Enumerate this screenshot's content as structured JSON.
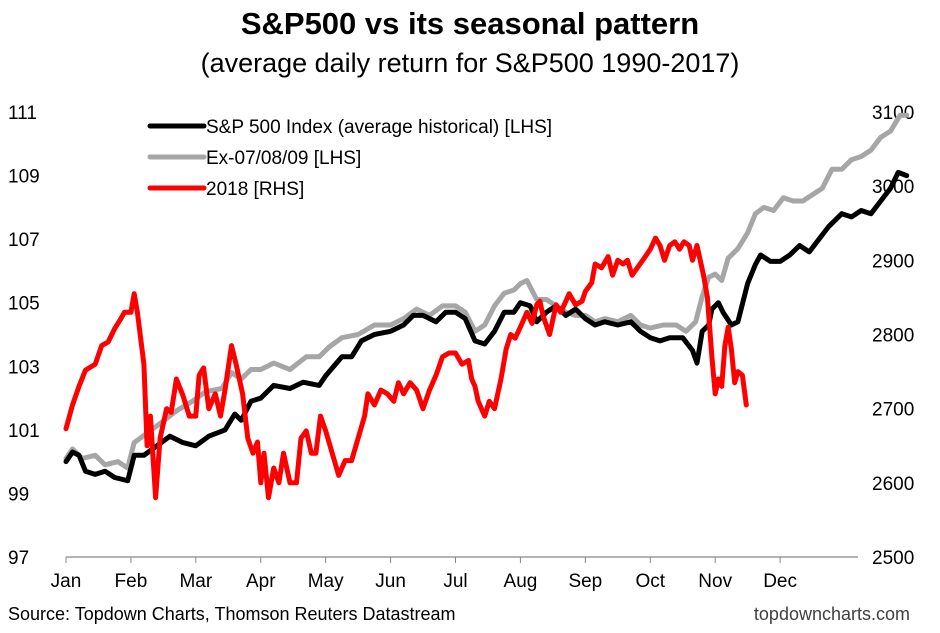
{
  "chart_data": {
    "type": "line",
    "title": "S&P500 vs its seasonal pattern",
    "subtitle": "(average daily return for S&P500 1990-2017)",
    "x_categories": [
      "Jan",
      "Feb",
      "Mar",
      "Apr",
      "May",
      "Jun",
      "Jul",
      "Aug",
      "Sep",
      "Oct",
      "Nov",
      "Dec"
    ],
    "x_range_months": [
      0,
      12
    ],
    "y_left": {
      "range": [
        97,
        111
      ],
      "ticks": [
        97,
        99,
        101,
        103,
        105,
        107,
        109,
        111
      ]
    },
    "y_right": {
      "range": [
        2500,
        3100
      ],
      "ticks": [
        2500,
        2600,
        2700,
        2800,
        2900,
        3000,
        3100
      ]
    },
    "legend_position": "top-left",
    "grid": false,
    "series": [
      {
        "name": "S&P 500 Index (average historical) [LHS]",
        "axis": "left",
        "color": "#000000",
        "points": [
          [
            0.0,
            100.0
          ],
          [
            0.1,
            100.3
          ],
          [
            0.2,
            100.2
          ],
          [
            0.3,
            99.7
          ],
          [
            0.45,
            99.6
          ],
          [
            0.6,
            99.7
          ],
          [
            0.75,
            99.5
          ],
          [
            0.95,
            99.4
          ],
          [
            1.05,
            100.2
          ],
          [
            1.2,
            100.2
          ],
          [
            1.4,
            100.5
          ],
          [
            1.6,
            100.8
          ],
          [
            1.8,
            100.6
          ],
          [
            2.0,
            100.5
          ],
          [
            2.2,
            100.8
          ],
          [
            2.45,
            101.0
          ],
          [
            2.6,
            101.5
          ],
          [
            2.7,
            101.3
          ],
          [
            2.85,
            101.9
          ],
          [
            3.0,
            102.0
          ],
          [
            3.2,
            102.4
          ],
          [
            3.45,
            102.3
          ],
          [
            3.65,
            102.5
          ],
          [
            3.9,
            102.4
          ],
          [
            4.0,
            102.7
          ],
          [
            4.25,
            103.3
          ],
          [
            4.4,
            103.3
          ],
          [
            4.55,
            103.8
          ],
          [
            4.75,
            104.0
          ],
          [
            5.0,
            104.1
          ],
          [
            5.2,
            104.3
          ],
          [
            5.35,
            104.6
          ],
          [
            5.5,
            104.6
          ],
          [
            5.7,
            104.4
          ],
          [
            5.85,
            104.7
          ],
          [
            6.0,
            104.7
          ],
          [
            6.15,
            104.5
          ],
          [
            6.3,
            103.8
          ],
          [
            6.45,
            103.7
          ],
          [
            6.6,
            104.1
          ],
          [
            6.75,
            104.7
          ],
          [
            6.9,
            104.7
          ],
          [
            7.0,
            105.0
          ],
          [
            7.15,
            104.9
          ],
          [
            7.25,
            104.4
          ],
          [
            7.4,
            104.7
          ],
          [
            7.55,
            104.9
          ],
          [
            7.7,
            104.6
          ],
          [
            7.85,
            104.8
          ],
          [
            8.0,
            104.5
          ],
          [
            8.15,
            104.3
          ],
          [
            8.3,
            104.4
          ],
          [
            8.5,
            104.3
          ],
          [
            8.7,
            104.4
          ],
          [
            8.85,
            104.1
          ],
          [
            9.0,
            103.9
          ],
          [
            9.15,
            103.8
          ],
          [
            9.3,
            103.9
          ],
          [
            9.5,
            103.9
          ],
          [
            9.65,
            103.5
          ],
          [
            9.72,
            103.1
          ],
          [
            9.8,
            104.1
          ],
          [
            9.9,
            104.3
          ],
          [
            9.95,
            104.8
          ],
          [
            10.05,
            105.0
          ],
          [
            10.12,
            104.7
          ],
          [
            10.25,
            104.3
          ],
          [
            10.35,
            104.4
          ],
          [
            10.5,
            105.6
          ],
          [
            10.62,
            106.2
          ],
          [
            10.7,
            106.5
          ],
          [
            10.85,
            106.3
          ],
          [
            11.0,
            106.3
          ],
          [
            11.15,
            106.5
          ],
          [
            11.3,
            106.8
          ],
          [
            11.45,
            106.6
          ],
          [
            11.6,
            107.0
          ],
          [
            11.75,
            107.4
          ],
          [
            11.95,
            107.8
          ],
          [
            12.1,
            107.7
          ],
          [
            12.25,
            107.9
          ],
          [
            12.4,
            107.8
          ],
          [
            12.55,
            108.2
          ],
          [
            12.7,
            108.6
          ],
          [
            12.82,
            109.1
          ],
          [
            12.95,
            109.0
          ]
        ]
      },
      {
        "name": "Ex-07/08/09 [LHS]",
        "axis": "left",
        "color": "#a6a6a6",
        "points": [
          [
            0.0,
            100.1
          ],
          [
            0.1,
            100.4
          ],
          [
            0.25,
            100.1
          ],
          [
            0.45,
            100.2
          ],
          [
            0.6,
            99.9
          ],
          [
            0.8,
            100.0
          ],
          [
            0.95,
            99.8
          ],
          [
            1.05,
            100.6
          ],
          [
            1.25,
            100.9
          ],
          [
            1.45,
            101.2
          ],
          [
            1.7,
            101.6
          ],
          [
            1.95,
            101.9
          ],
          [
            2.15,
            102.2
          ],
          [
            2.4,
            102.3
          ],
          [
            2.55,
            102.8
          ],
          [
            2.7,
            102.6
          ],
          [
            2.85,
            102.9
          ],
          [
            3.0,
            102.9
          ],
          [
            3.2,
            103.1
          ],
          [
            3.45,
            102.9
          ],
          [
            3.7,
            103.3
          ],
          [
            3.9,
            103.3
          ],
          [
            4.05,
            103.6
          ],
          [
            4.25,
            103.9
          ],
          [
            4.5,
            104.0
          ],
          [
            4.75,
            104.3
          ],
          [
            5.0,
            104.3
          ],
          [
            5.2,
            104.5
          ],
          [
            5.4,
            104.8
          ],
          [
            5.6,
            104.6
          ],
          [
            5.8,
            104.9
          ],
          [
            6.0,
            104.9
          ],
          [
            6.15,
            104.7
          ],
          [
            6.3,
            104.1
          ],
          [
            6.45,
            104.3
          ],
          [
            6.6,
            104.9
          ],
          [
            6.75,
            105.3
          ],
          [
            6.9,
            105.4
          ],
          [
            7.0,
            105.6
          ],
          [
            7.1,
            105.7
          ],
          [
            7.25,
            105.1
          ],
          [
            7.4,
            105.1
          ],
          [
            7.55,
            104.9
          ],
          [
            7.7,
            104.7
          ],
          [
            7.85,
            104.6
          ],
          [
            8.0,
            104.6
          ],
          [
            8.15,
            104.4
          ],
          [
            8.3,
            104.5
          ],
          [
            8.5,
            104.4
          ],
          [
            8.7,
            104.6
          ],
          [
            8.85,
            104.3
          ],
          [
            9.0,
            104.2
          ],
          [
            9.2,
            104.3
          ],
          [
            9.4,
            104.3
          ],
          [
            9.55,
            104.1
          ],
          [
            9.7,
            104.4
          ],
          [
            9.8,
            105.2
          ],
          [
            9.9,
            105.8
          ],
          [
            10.0,
            105.9
          ],
          [
            10.1,
            105.7
          ],
          [
            10.2,
            106.4
          ],
          [
            10.35,
            106.7
          ],
          [
            10.5,
            107.2
          ],
          [
            10.62,
            107.8
          ],
          [
            10.75,
            108.0
          ],
          [
            10.9,
            107.9
          ],
          [
            11.05,
            108.3
          ],
          [
            11.2,
            108.2
          ],
          [
            11.35,
            108.2
          ],
          [
            11.5,
            108.4
          ],
          [
            11.65,
            108.6
          ],
          [
            11.8,
            109.2
          ],
          [
            11.95,
            109.2
          ],
          [
            12.1,
            109.5
          ],
          [
            12.25,
            109.6
          ],
          [
            12.4,
            109.8
          ],
          [
            12.55,
            110.2
          ],
          [
            12.7,
            110.4
          ],
          [
            12.85,
            110.9
          ],
          [
            12.95,
            110.9
          ]
        ]
      },
      {
        "name": "2018 [RHS]",
        "axis": "right",
        "color": "#ff0000",
        "points": [
          [
            0.0,
            2673
          ],
          [
            0.1,
            2705
          ],
          [
            0.2,
            2730
          ],
          [
            0.3,
            2752
          ],
          [
            0.45,
            2760
          ],
          [
            0.55,
            2785
          ],
          [
            0.65,
            2790
          ],
          [
            0.75,
            2808
          ],
          [
            0.85,
            2822
          ],
          [
            0.9,
            2830
          ],
          [
            1.0,
            2830
          ],
          [
            1.05,
            2855
          ],
          [
            1.1,
            2830
          ],
          [
            1.2,
            2760
          ],
          [
            1.25,
            2650
          ],
          [
            1.3,
            2690
          ],
          [
            1.38,
            2580
          ],
          [
            1.45,
            2660
          ],
          [
            1.55,
            2700
          ],
          [
            1.62,
            2695
          ],
          [
            1.7,
            2740
          ],
          [
            1.8,
            2718
          ],
          [
            1.9,
            2690
          ],
          [
            2.0,
            2690
          ],
          [
            2.05,
            2745
          ],
          [
            2.12,
            2755
          ],
          [
            2.2,
            2700
          ],
          [
            2.3,
            2720
          ],
          [
            2.38,
            2690
          ],
          [
            2.45,
            2725
          ],
          [
            2.55,
            2785
          ],
          [
            2.62,
            2760
          ],
          [
            2.72,
            2720
          ],
          [
            2.8,
            2660
          ],
          [
            2.88,
            2640
          ],
          [
            2.95,
            2655
          ],
          [
            3.0,
            2600
          ],
          [
            3.05,
            2640
          ],
          [
            3.12,
            2580
          ],
          [
            3.2,
            2620
          ],
          [
            3.28,
            2600
          ],
          [
            3.35,
            2640
          ],
          [
            3.45,
            2600
          ],
          [
            3.55,
            2600
          ],
          [
            3.62,
            2660
          ],
          [
            3.7,
            2670
          ],
          [
            3.78,
            2640
          ],
          [
            3.85,
            2640
          ],
          [
            3.92,
            2690
          ],
          [
            4.0,
            2670
          ],
          [
            4.1,
            2640
          ],
          [
            4.2,
            2610
          ],
          [
            4.3,
            2630
          ],
          [
            4.4,
            2630
          ],
          [
            4.5,
            2660
          ],
          [
            4.6,
            2690
          ],
          [
            4.65,
            2720
          ],
          [
            4.75,
            2705
          ],
          [
            4.85,
            2725
          ],
          [
            4.95,
            2720
          ],
          [
            5.05,
            2710
          ],
          [
            5.12,
            2735
          ],
          [
            5.2,
            2720
          ],
          [
            5.3,
            2735
          ],
          [
            5.4,
            2725
          ],
          [
            5.5,
            2700
          ],
          [
            5.6,
            2725
          ],
          [
            5.7,
            2745
          ],
          [
            5.8,
            2770
          ],
          [
            5.9,
            2775
          ],
          [
            6.0,
            2775
          ],
          [
            6.1,
            2760
          ],
          [
            6.2,
            2765
          ],
          [
            6.25,
            2740
          ],
          [
            6.3,
            2730
          ],
          [
            6.35,
            2710
          ],
          [
            6.45,
            2690
          ],
          [
            6.52,
            2710
          ],
          [
            6.6,
            2700
          ],
          [
            6.7,
            2740
          ],
          [
            6.78,
            2780
          ],
          [
            6.85,
            2800
          ],
          [
            6.92,
            2795
          ],
          [
            7.0,
            2810
          ],
          [
            7.1,
            2830
          ],
          [
            7.18,
            2815
          ],
          [
            7.25,
            2840
          ],
          [
            7.3,
            2845
          ],
          [
            7.35,
            2825
          ],
          [
            7.45,
            2800
          ],
          [
            7.55,
            2840
          ],
          [
            7.62,
            2830
          ],
          [
            7.7,
            2845
          ],
          [
            7.75,
            2855
          ],
          [
            7.85,
            2840
          ],
          [
            7.95,
            2845
          ],
          [
            8.0,
            2858
          ],
          [
            8.1,
            2870
          ],
          [
            8.15,
            2895
          ],
          [
            8.25,
            2890
          ],
          [
            8.35,
            2905
          ],
          [
            8.42,
            2880
          ],
          [
            8.5,
            2900
          ],
          [
            8.58,
            2895
          ],
          [
            8.65,
            2900
          ],
          [
            8.72,
            2880
          ],
          [
            8.8,
            2890
          ],
          [
            8.9,
            2902
          ],
          [
            9.0,
            2915
          ],
          [
            9.08,
            2930
          ],
          [
            9.15,
            2920
          ],
          [
            9.22,
            2900
          ],
          [
            9.3,
            2920
          ],
          [
            9.38,
            2925
          ],
          [
            9.45,
            2915
          ],
          [
            9.52,
            2925
          ],
          [
            9.6,
            2920
          ],
          [
            9.65,
            2900
          ],
          [
            9.72,
            2920
          ],
          [
            9.82,
            2880
          ],
          [
            9.88,
            2850
          ],
          [
            9.95,
            2770
          ],
          [
            10.0,
            2720
          ],
          [
            10.05,
            2740
          ],
          [
            10.1,
            2730
          ],
          [
            10.15,
            2785
          ],
          [
            10.2,
            2810
          ],
          [
            10.25,
            2780
          ],
          [
            10.3,
            2735
          ],
          [
            10.35,
            2750
          ],
          [
            10.42,
            2745
          ],
          [
            10.48,
            2705
          ]
        ]
      }
    ],
    "source_text": "Source: Topdown Charts, Thomson Reuters Datastream",
    "brand_text": "topdowncharts.com"
  }
}
